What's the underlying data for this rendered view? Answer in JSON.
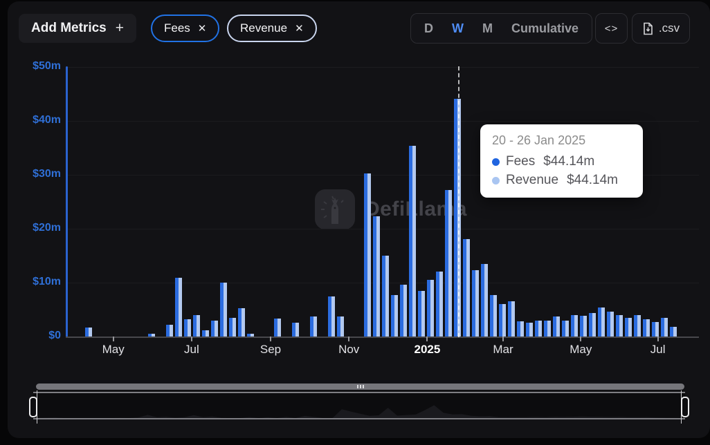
{
  "header": {
    "add_metrics_label": "Add Metrics",
    "plus_label": "+",
    "metric_chips": [
      {
        "label": "Fees",
        "close_label": "✕",
        "border_color": "#2172E5"
      },
      {
        "label": "Revenue",
        "close_label": "✕",
        "border_color": "#c9d5ee"
      }
    ],
    "interval_options": [
      {
        "label": "D",
        "active": false
      },
      {
        "label": "W",
        "active": true
      },
      {
        "label": "M",
        "active": false
      },
      {
        "label": "Cumulative",
        "active": false
      }
    ],
    "embed_label": "<>",
    "csv_label": ".csv",
    "csv_icon": "file-download-icon"
  },
  "watermark": {
    "text": "DefiLlama",
    "logo": "defillama-llama-logo"
  },
  "tooltip": {
    "title": "20 - 26 Jan 2025",
    "rows": [
      {
        "name": "Fees",
        "value": "$44.14m",
        "dot_color": "#2065e0"
      },
      {
        "name": "Revenue",
        "value": "$44.14m",
        "dot_color": "#a9c5f1"
      }
    ]
  },
  "colors": {
    "fees": "#2b6ce0",
    "revenue": "#b3c9ef",
    "axis_blue": "#2b63cf",
    "active_interval": "#4f8df6",
    "panel_bg": "#121215"
  },
  "chart_data": {
    "type": "bar",
    "title": "",
    "xlabel": "",
    "ylabel": "",
    "interval": "weekly",
    "x_start_week": "2024-04-08",
    "ylim": [
      0,
      50
    ],
    "grid": "subtle-horizontal",
    "y_ticks": [
      "$0",
      "$10m",
      "$20m",
      "$30m",
      "$40m",
      "$50m"
    ],
    "x_ticks": [
      {
        "label": "May",
        "pos": 0.073,
        "bold": false
      },
      {
        "label": "Jul",
        "pos": 0.197,
        "bold": false
      },
      {
        "label": "Sep",
        "pos": 0.322,
        "bold": false
      },
      {
        "label": "Nov",
        "pos": 0.446,
        "bold": false
      },
      {
        "label": "2025",
        "pos": 0.57,
        "bold": true
      },
      {
        "label": "Mar",
        "pos": 0.69,
        "bold": false
      },
      {
        "label": "May",
        "pos": 0.813,
        "bold": false
      },
      {
        "label": "Jul",
        "pos": 0.935,
        "bold": false
      }
    ],
    "highlight_index": 41,
    "highlight_label": "20 - 26 Jan 2025",
    "series": [
      {
        "name": "Fees",
        "color": "#2b6ce0",
        "values": [
          1.7,
          0,
          0,
          0,
          0,
          0,
          0,
          0.5,
          0,
          2.2,
          10.9,
          3.2,
          4.0,
          1.1,
          3.0,
          10.0,
          3.4,
          5.2,
          0.55,
          0,
          0,
          3.3,
          0,
          2.6,
          0,
          3.7,
          0,
          7.4,
          3.7,
          0,
          0,
          30.3,
          22.3,
          15.0,
          7.7,
          9.6,
          35.4,
          8.4,
          10.5,
          12.0,
          27.2,
          44.14,
          18.1,
          12.3,
          13.4,
          7.7,
          6.0,
          6.5,
          2.8,
          2.5,
          2.9,
          3.0,
          3.7,
          3.0,
          4.0,
          3.8,
          4.4,
          5.4,
          4.6,
          4.0,
          3.5,
          4.0,
          3.2,
          2.7,
          3.4,
          1.75
        ]
      },
      {
        "name": "Revenue",
        "color": "#b3c9ef",
        "values": [
          1.7,
          0,
          0,
          0,
          0,
          0,
          0,
          0.5,
          0,
          2.2,
          10.9,
          3.2,
          4.0,
          1.1,
          3.0,
          10.0,
          3.4,
          5.2,
          0.55,
          0,
          0,
          3.3,
          0,
          2.6,
          0,
          3.7,
          0,
          7.4,
          3.7,
          0,
          0,
          30.3,
          22.3,
          15.0,
          7.7,
          9.6,
          35.4,
          8.4,
          10.5,
          12.0,
          27.2,
          44.14,
          18.1,
          12.3,
          13.4,
          7.7,
          6.0,
          6.5,
          2.8,
          2.5,
          2.9,
          3.0,
          3.7,
          3.0,
          4.0,
          3.8,
          4.4,
          5.4,
          4.6,
          4.0,
          3.5,
          4.0,
          3.2,
          2.7,
          3.4,
          1.75
        ]
      }
    ]
  }
}
